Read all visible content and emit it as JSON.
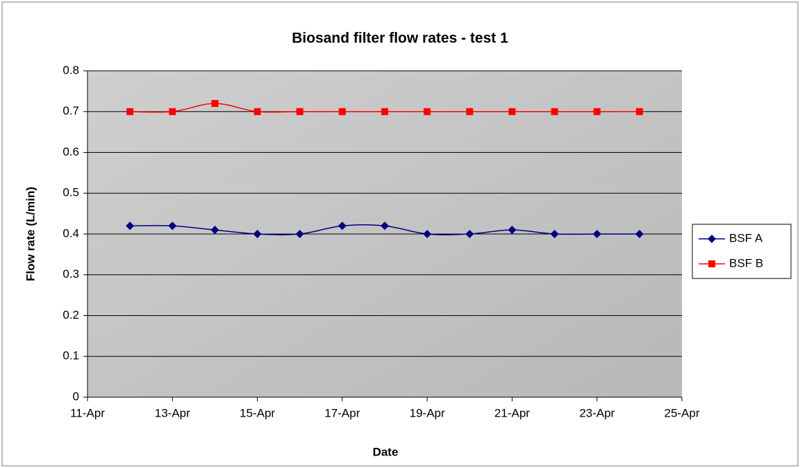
{
  "chart_data": {
    "type": "line",
    "title": "Biosand filter flow rates - test 1",
    "x_label": "Date",
    "y_label": "Flow rate (L/min)",
    "x": [
      12,
      13,
      14,
      15,
      16,
      17,
      18,
      19,
      20,
      21,
      22,
      23,
      24
    ],
    "series": [
      {
        "name": "BSF A",
        "color": "#000080",
        "marker": "diamond",
        "values": [
          0.42,
          0.42,
          0.41,
          0.4,
          0.4,
          0.42,
          0.42,
          0.4,
          0.4,
          0.41,
          0.4,
          0.4,
          0.4
        ]
      },
      {
        "name": "BSF B",
        "color": "#ff0000",
        "marker": "square",
        "values": [
          0.7,
          0.7,
          0.72,
          0.7,
          0.7,
          0.7,
          0.7,
          0.7,
          0.7,
          0.7,
          0.7,
          0.7,
          0.7
        ]
      }
    ],
    "xlim": [
      11,
      25
    ],
    "xticks": [
      {
        "value": 11,
        "label": "11-Apr"
      },
      {
        "value": 13,
        "label": "13-Apr"
      },
      {
        "value": 15,
        "label": "15-Apr"
      },
      {
        "value": 17,
        "label": "17-Apr"
      },
      {
        "value": 19,
        "label": "19-Apr"
      },
      {
        "value": 21,
        "label": "21-Apr"
      },
      {
        "value": 23,
        "label": "23-Apr"
      },
      {
        "value": 25,
        "label": "25-Apr"
      }
    ],
    "ylim": [
      0,
      0.8
    ],
    "yticks": [
      0,
      0.1,
      0.2,
      0.3,
      0.4,
      0.5,
      0.6,
      0.7,
      0.8
    ],
    "grid": true,
    "smooth": true,
    "legend": "right"
  }
}
